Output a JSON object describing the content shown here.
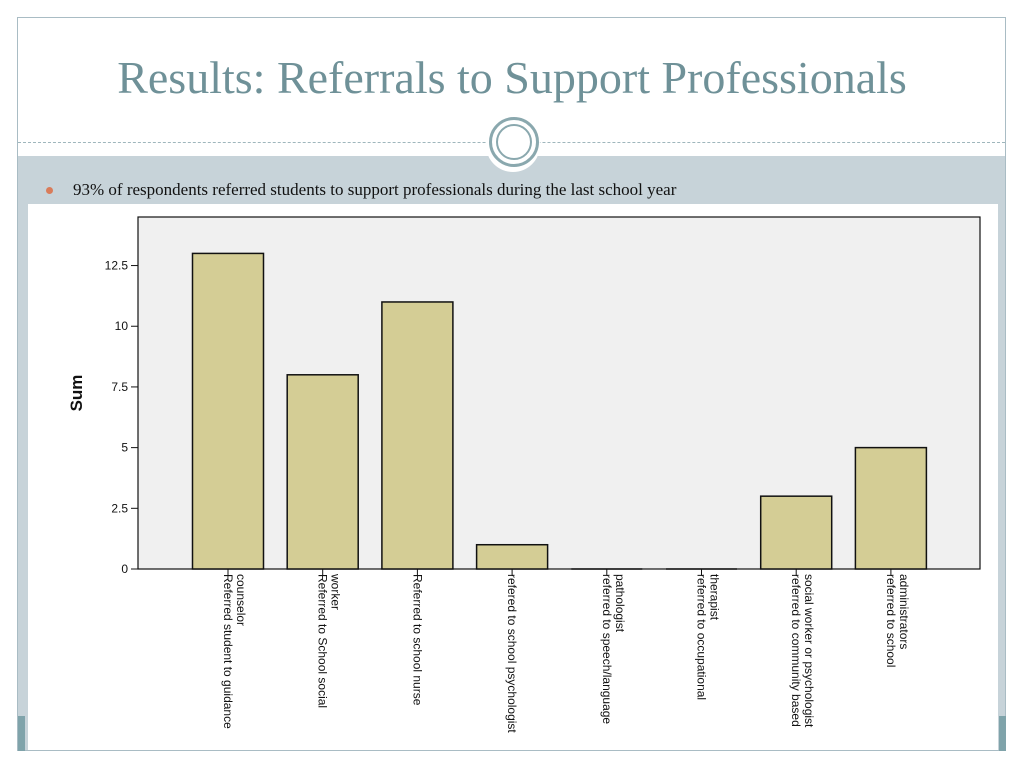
{
  "slide": {
    "title": "Results: Referrals to Support Professionals",
    "bullet": "93% of respondents referred students to support professionals during the last school year"
  },
  "colors": {
    "title": "#6f9198",
    "band": "#c7d3d9",
    "bullet": "#d97c5a",
    "bar_fill": "#d4cd95",
    "bar_stroke": "#111111",
    "plot_bg": "#f0f0f0"
  },
  "chart_data": {
    "type": "bar",
    "ylabel": "Sum",
    "xlabel": "",
    "ylim": [
      0,
      14.5
    ],
    "yticks": [
      "0",
      "2.5",
      "5",
      "7.5",
      "10",
      "12.5"
    ],
    "grid": false,
    "categories": [
      [
        "Referred student to guidance",
        "counselor"
      ],
      [
        "Referred to School social",
        "worker"
      ],
      [
        "Referred to school nurse"
      ],
      [
        "refered to school psychologist"
      ],
      [
        "referred to speech/language",
        "pathologist"
      ],
      [
        "referred to occupational",
        "therapist"
      ],
      [
        "referred to community based",
        "social worker or psychologist"
      ],
      [
        "referred to school",
        "administrators"
      ]
    ],
    "values": [
      13,
      8,
      11,
      1,
      0,
      0,
      3,
      5
    ]
  }
}
